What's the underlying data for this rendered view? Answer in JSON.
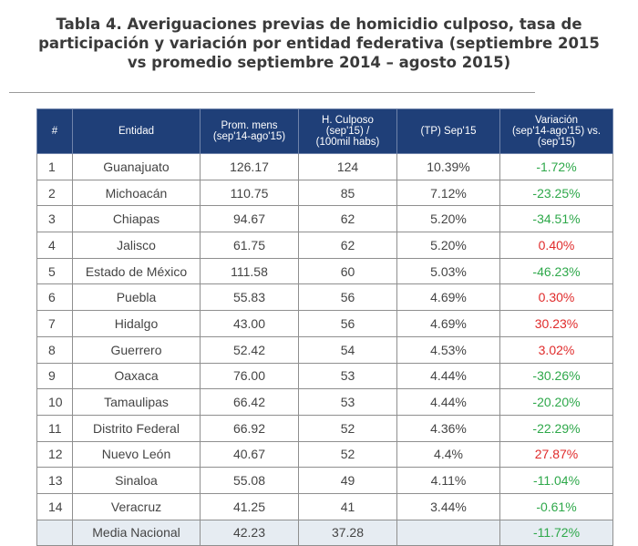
{
  "title": {
    "line1": "Tabla 4. Averiguaciones previas de homicidio culposo, tasa de",
    "line2": "participación y variación por entidad federativa (septiembre 2015",
    "line3": "vs promedio septiembre 2014 – agosto 2015)"
  },
  "table": {
    "headers": [
      "#",
      "Entidad",
      "Prom. mens\n(sep'14-ago'15)",
      "H. Culposo\n(sep'15) /\n(100mil habs)",
      "(TP) Sep'15",
      "Variación\n(sep'14-ago'15) vs.\n(sep'15)"
    ],
    "rows": [
      {
        "n": "1",
        "entidad": "Guanajuato",
        "prom": "126.17",
        "culposo": "124",
        "tp": "10.39%",
        "var": "-1.72%",
        "sign": "neg"
      },
      {
        "n": "2",
        "entidad": "Michoacán",
        "prom": "110.75",
        "culposo": "85",
        "tp": "7.12%",
        "var": "-23.25%",
        "sign": "neg"
      },
      {
        "n": "3",
        "entidad": "Chiapas",
        "prom": "94.67",
        "culposo": "62",
        "tp": "5.20%",
        "var": "-34.51%",
        "sign": "neg"
      },
      {
        "n": "4",
        "entidad": "Jalisco",
        "prom": "61.75",
        "culposo": "62",
        "tp": "5.20%",
        "var": "0.40%",
        "sign": "pos"
      },
      {
        "n": "5",
        "entidad": "Estado de México",
        "prom": "111.58",
        "culposo": "60",
        "tp": "5.03%",
        "var": "-46.23%",
        "sign": "neg"
      },
      {
        "n": "6",
        "entidad": "Puebla",
        "prom": "55.83",
        "culposo": "56",
        "tp": "4.69%",
        "var": "0.30%",
        "sign": "pos"
      },
      {
        "n": "7",
        "entidad": "Hidalgo",
        "prom": "43.00",
        "culposo": "56",
        "tp": "4.69%",
        "var": "30.23%",
        "sign": "pos"
      },
      {
        "n": "8",
        "entidad": "Guerrero",
        "prom": "52.42",
        "culposo": "54",
        "tp": "4.53%",
        "var": "3.02%",
        "sign": "pos"
      },
      {
        "n": "9",
        "entidad": "Oaxaca",
        "prom": "76.00",
        "culposo": "53",
        "tp": "4.44%",
        "var": "-30.26%",
        "sign": "neg"
      },
      {
        "n": "10",
        "entidad": "Tamaulipas",
        "prom": "66.42",
        "culposo": "53",
        "tp": "4.44%",
        "var": "-20.20%",
        "sign": "neg"
      },
      {
        "n": "11",
        "entidad": "Distrito Federal",
        "prom": "66.92",
        "culposo": "52",
        "tp": "4.36%",
        "var": "-22.29%",
        "sign": "neg"
      },
      {
        "n": "12",
        "entidad": "Nuevo León",
        "prom": "40.67",
        "culposo": "52",
        "tp": "4.4%",
        "var": "27.87%",
        "sign": "pos"
      },
      {
        "n": "13",
        "entidad": "Sinaloa",
        "prom": "55.08",
        "culposo": "49",
        "tp": "4.11%",
        "var": "-11.04%",
        "sign": "neg"
      },
      {
        "n": "14",
        "entidad": "Veracruz",
        "prom": "41.25",
        "culposo": "41",
        "tp": "3.44%",
        "var": "-0.61%",
        "sign": "neg"
      }
    ],
    "footer": {
      "n": "",
      "entidad": "Media Nacional",
      "prom": "42.23",
      "culposo": "37.28",
      "tp": "",
      "var": "-11.72%",
      "sign": "neg"
    }
  },
  "colors": {
    "header_bg": "#1f3f78",
    "negative": "#2ea84a",
    "positive": "#e02b2b",
    "footer_bg": "#e6ecf2"
  }
}
